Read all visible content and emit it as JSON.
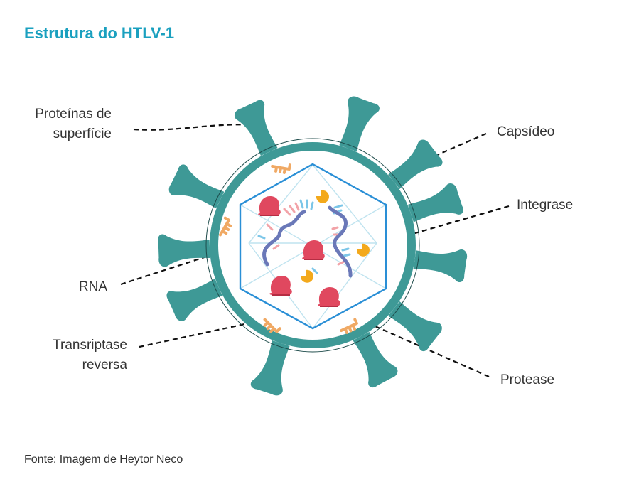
{
  "title": "Estrutura do HTLV-1",
  "labels": {
    "surface_proteins": "Proteínas de\nsuperfície",
    "capsid": "Capsídeo",
    "integrase": "Integrase",
    "rna": "RNA",
    "reverse_transcriptase": "Transriptase\nreversa",
    "protease": "Protease"
  },
  "source": "Fonte: Imagem de Heytor Neco",
  "colors": {
    "title": "#1aa0bf",
    "envelope": "#3e9996",
    "capsid_line": "#2a8fd6",
    "rna_strand": "#6a78b8",
    "protein_red": "#e0485f",
    "integrase_yellow": "#f3a91c",
    "protease_orange": "#f0a964",
    "base_pink": "#f2a3a8",
    "base_blue": "#7cc6e8"
  }
}
